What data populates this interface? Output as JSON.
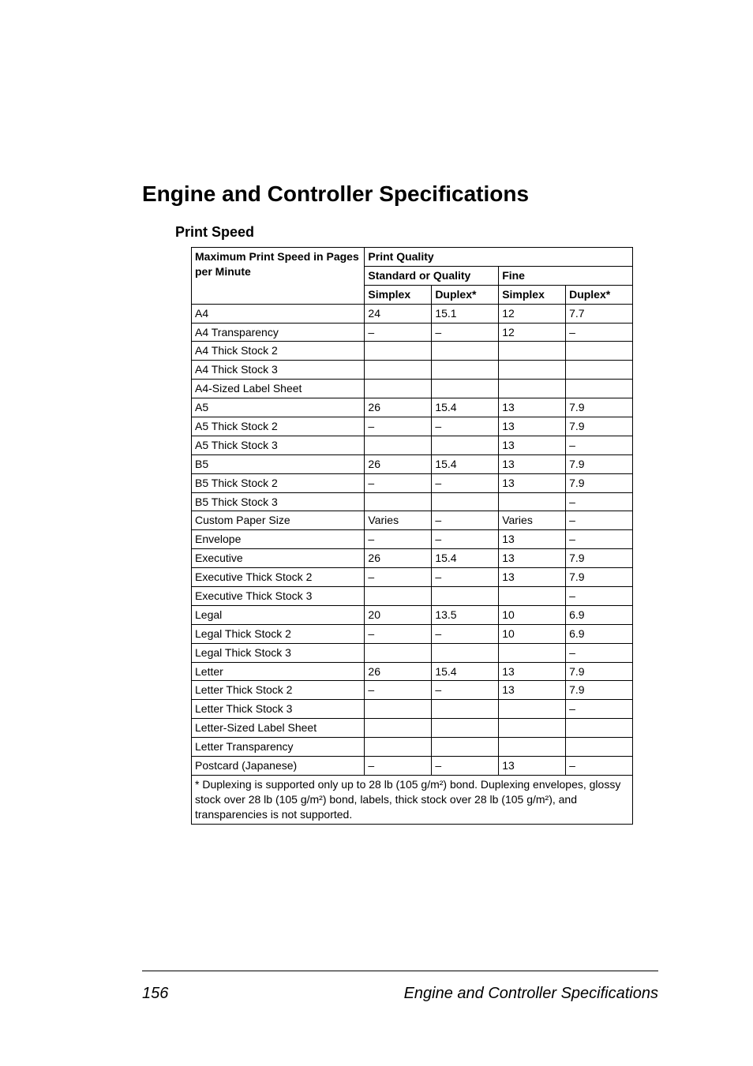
{
  "page": {
    "title": "Engine and Controller Specifications",
    "section": "Print Speed",
    "pageNumber": "156",
    "footerText": "Engine and Controller Specifications"
  },
  "table": {
    "header": {
      "rowHeader": "Maximum Print Speed in Pages per Minute",
      "qualityGroup": "Print Quality",
      "standardGroup": "Standard or Quality",
      "fineGroup": "Fine",
      "simplex": "Simplex",
      "duplex": "Duplex*"
    },
    "rows": [
      {
        "label": "A4",
        "sSimplex": "24",
        "sDuplex": "15.1",
        "fSimplex": "12",
        "fDuplex": "7.7"
      },
      {
        "label": "A4 Transparency",
        "sSimplex": "–",
        "sDuplex": "–",
        "fSimplex": "12",
        "fDuplex": "–"
      },
      {
        "label": "A4 Thick Stock 2",
        "sSimplex": "",
        "sDuplex": "",
        "fSimplex": "",
        "fDuplex": ""
      },
      {
        "label": "A4 Thick Stock 3",
        "sSimplex": "",
        "sDuplex": "",
        "fSimplex": "",
        "fDuplex": ""
      },
      {
        "label": "A4-Sized Label Sheet",
        "sSimplex": "",
        "sDuplex": "",
        "fSimplex": "",
        "fDuplex": ""
      },
      {
        "label": "A5",
        "sSimplex": "26",
        "sDuplex": "15.4",
        "fSimplex": "13",
        "fDuplex": "7.9"
      },
      {
        "label": "A5 Thick Stock 2",
        "sSimplex": "–",
        "sDuplex": "–",
        "fSimplex": "13",
        "fDuplex": "7.9"
      },
      {
        "label": "A5 Thick Stock 3",
        "sSimplex": "",
        "sDuplex": "",
        "fSimplex": "13",
        "fDuplex": "–"
      },
      {
        "label": "B5",
        "sSimplex": "26",
        "sDuplex": "15.4",
        "fSimplex": "13",
        "fDuplex": "7.9"
      },
      {
        "label": "B5 Thick Stock 2",
        "sSimplex": "–",
        "sDuplex": "–",
        "fSimplex": "13",
        "fDuplex": "7.9"
      },
      {
        "label": "B5 Thick Stock 3",
        "sSimplex": "",
        "sDuplex": "",
        "fSimplex": "",
        "fDuplex": "–"
      },
      {
        "label": "Custom Paper Size",
        "sSimplex": "Varies",
        "sDuplex": "–",
        "fSimplex": "Varies",
        "fDuplex": "–"
      },
      {
        "label": "Envelope",
        "sSimplex": "–",
        "sDuplex": "–",
        "fSimplex": "13",
        "fDuplex": "–"
      },
      {
        "label": "Executive",
        "sSimplex": "26",
        "sDuplex": "15.4",
        "fSimplex": "13",
        "fDuplex": "7.9"
      },
      {
        "label": "Executive Thick Stock 2",
        "sSimplex": "–",
        "sDuplex": "–",
        "fSimplex": "13",
        "fDuplex": "7.9"
      },
      {
        "label": "Executive Thick Stock 3",
        "sSimplex": "",
        "sDuplex": "",
        "fSimplex": "",
        "fDuplex": "–"
      },
      {
        "label": "Legal",
        "sSimplex": "20",
        "sDuplex": "13.5",
        "fSimplex": "10",
        "fDuplex": "6.9"
      },
      {
        "label": "Legal Thick Stock 2",
        "sSimplex": "–",
        "sDuplex": "–",
        "fSimplex": "10",
        "fDuplex": "6.9"
      },
      {
        "label": "Legal Thick Stock 3",
        "sSimplex": "",
        "sDuplex": "",
        "fSimplex": "",
        "fDuplex": "–"
      },
      {
        "label": "Letter",
        "sSimplex": "26",
        "sDuplex": "15.4",
        "fSimplex": "13",
        "fDuplex": "7.9"
      },
      {
        "label": "Letter Thick Stock 2",
        "sSimplex": "–",
        "sDuplex": "–",
        "fSimplex": "13",
        "fDuplex": "7.9"
      },
      {
        "label": "Letter Thick Stock 3",
        "sSimplex": "",
        "sDuplex": "",
        "fSimplex": "",
        "fDuplex": "–"
      },
      {
        "label": "Letter-Sized Label Sheet",
        "sSimplex": "",
        "sDuplex": "",
        "fSimplex": "",
        "fDuplex": ""
      },
      {
        "label": "Letter Transparency",
        "sSimplex": "",
        "sDuplex": "",
        "fSimplex": "",
        "fDuplex": ""
      },
      {
        "label": "Postcard (Japanese)",
        "sSimplex": "–",
        "sDuplex": "–",
        "fSimplex": "13",
        "fDuplex": "–"
      }
    ],
    "footnote": "*  Duplexing is supported only up to 28 lb (105 g/m²) bond. Duplexing envelopes, glossy stock over 28 lb (105 g/m²) bond, labels, thick stock over 28 lb (105 g/m²), and transparencies is not supported."
  },
  "style": {
    "colWidths": {
      "label": 220,
      "data": 85
    }
  }
}
